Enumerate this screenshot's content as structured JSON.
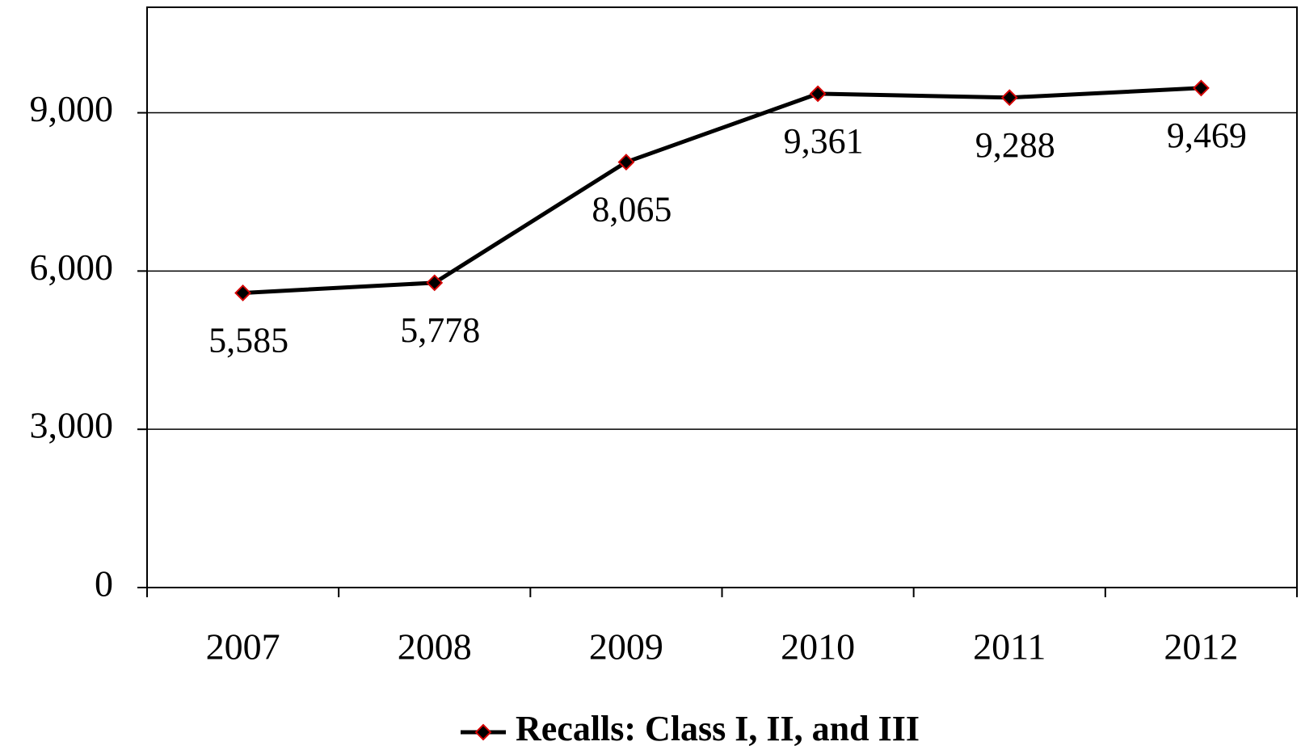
{
  "chart_data": {
    "type": "line",
    "categories": [
      "2007",
      "2008",
      "2009",
      "2010",
      "2011",
      "2012"
    ],
    "series": [
      {
        "name": "Recalls: Class I, II, and III",
        "color": "#000000",
        "marker_color": "#d40000",
        "values": [
          5585,
          5778,
          8065,
          9361,
          9288,
          9469
        ],
        "value_labels": [
          "5,585",
          "5,778",
          "8,065",
          "9,361",
          "9,288",
          "9,469"
        ]
      }
    ],
    "ylim": [
      0,
      11000
    ],
    "yticks": [
      {
        "value": 0,
        "label": "0"
      },
      {
        "value": 3000,
        "label": "3,000"
      },
      {
        "value": 6000,
        "label": "6,000"
      },
      {
        "value": 9000,
        "label": "9,000"
      }
    ],
    "grid": true,
    "legend": "bottom"
  }
}
